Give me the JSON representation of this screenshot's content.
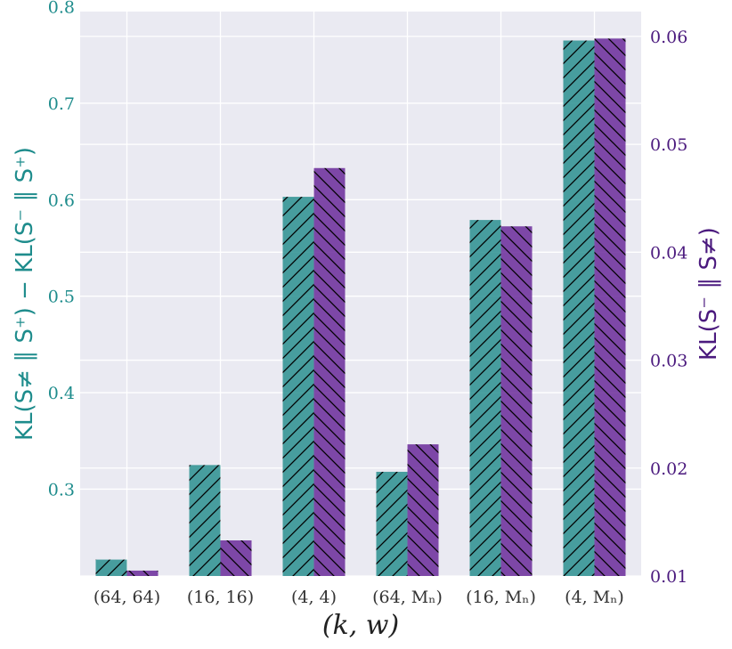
{
  "chart_data": {
    "type": "bar",
    "title": "",
    "xlabel": "(k, w)",
    "categories": [
      "(64, 64)",
      "(16, 16)",
      "(4, 4)",
      "(64, Mₙ)",
      "(16, Mₙ)",
      "(4, Mₙ)"
    ],
    "series": [
      {
        "name": "",
        "axis": "left",
        "color": "#2a9090",
        "hatch": "forward-diagonal",
        "values": [
          0.227,
          0.325,
          0.603,
          0.318,
          0.579,
          0.765
        ]
      },
      {
        "name": "",
        "axis": "right",
        "color": "#6a2a9a",
        "hatch": "backward-diagonal",
        "values": [
          0.0105,
          0.0133,
          0.0478,
          0.0222,
          0.0424,
          0.0598
        ]
      }
    ],
    "y_left": {
      "label": "KL(S≠ ∥ S⁺) − KL(S⁻ ∥ S⁺)",
      "lim": [
        0.21,
        0.795
      ],
      "ticks": [
        "0.3",
        "0.4",
        "0.5",
        "0.6",
        "0.7",
        "0.8"
      ],
      "color": "#1e8c8c"
    },
    "y_right": {
      "label": "KL(S⁻ ∥ S≠)",
      "lim": [
        0.01,
        0.0623
      ],
      "ticks": [
        "0.01",
        "0.02",
        "0.03",
        "0.04",
        "0.05",
        "0.06"
      ],
      "color": "#4b1a7e"
    },
    "grid": true,
    "background": "#eaeaf2"
  }
}
